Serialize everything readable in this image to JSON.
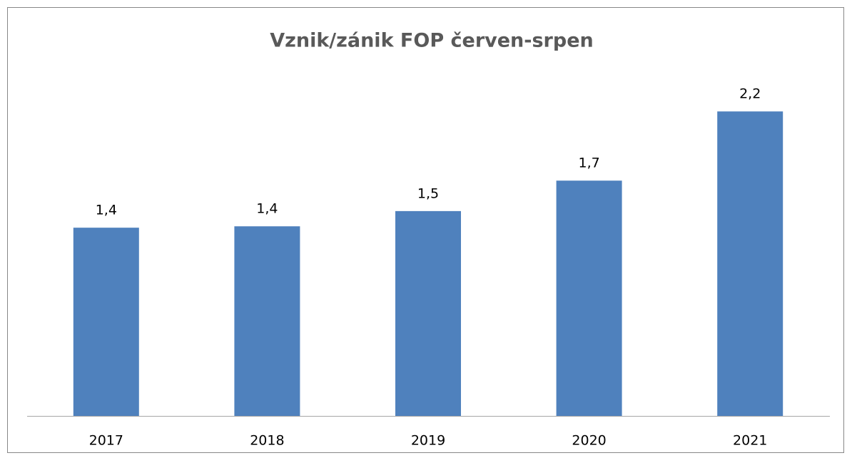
{
  "chart_data": {
    "type": "bar",
    "title": "Vznik/zánik FOP červen-srpen",
    "categories": [
      "2017",
      "2018",
      "2019",
      "2020",
      "2021"
    ],
    "values": [
      1.36,
      1.37,
      1.48,
      1.7,
      2.2
    ],
    "value_labels": [
      "1,4",
      "1,4",
      "1,5",
      "1,7",
      "2,2"
    ],
    "color": "#4f81bd"
  }
}
